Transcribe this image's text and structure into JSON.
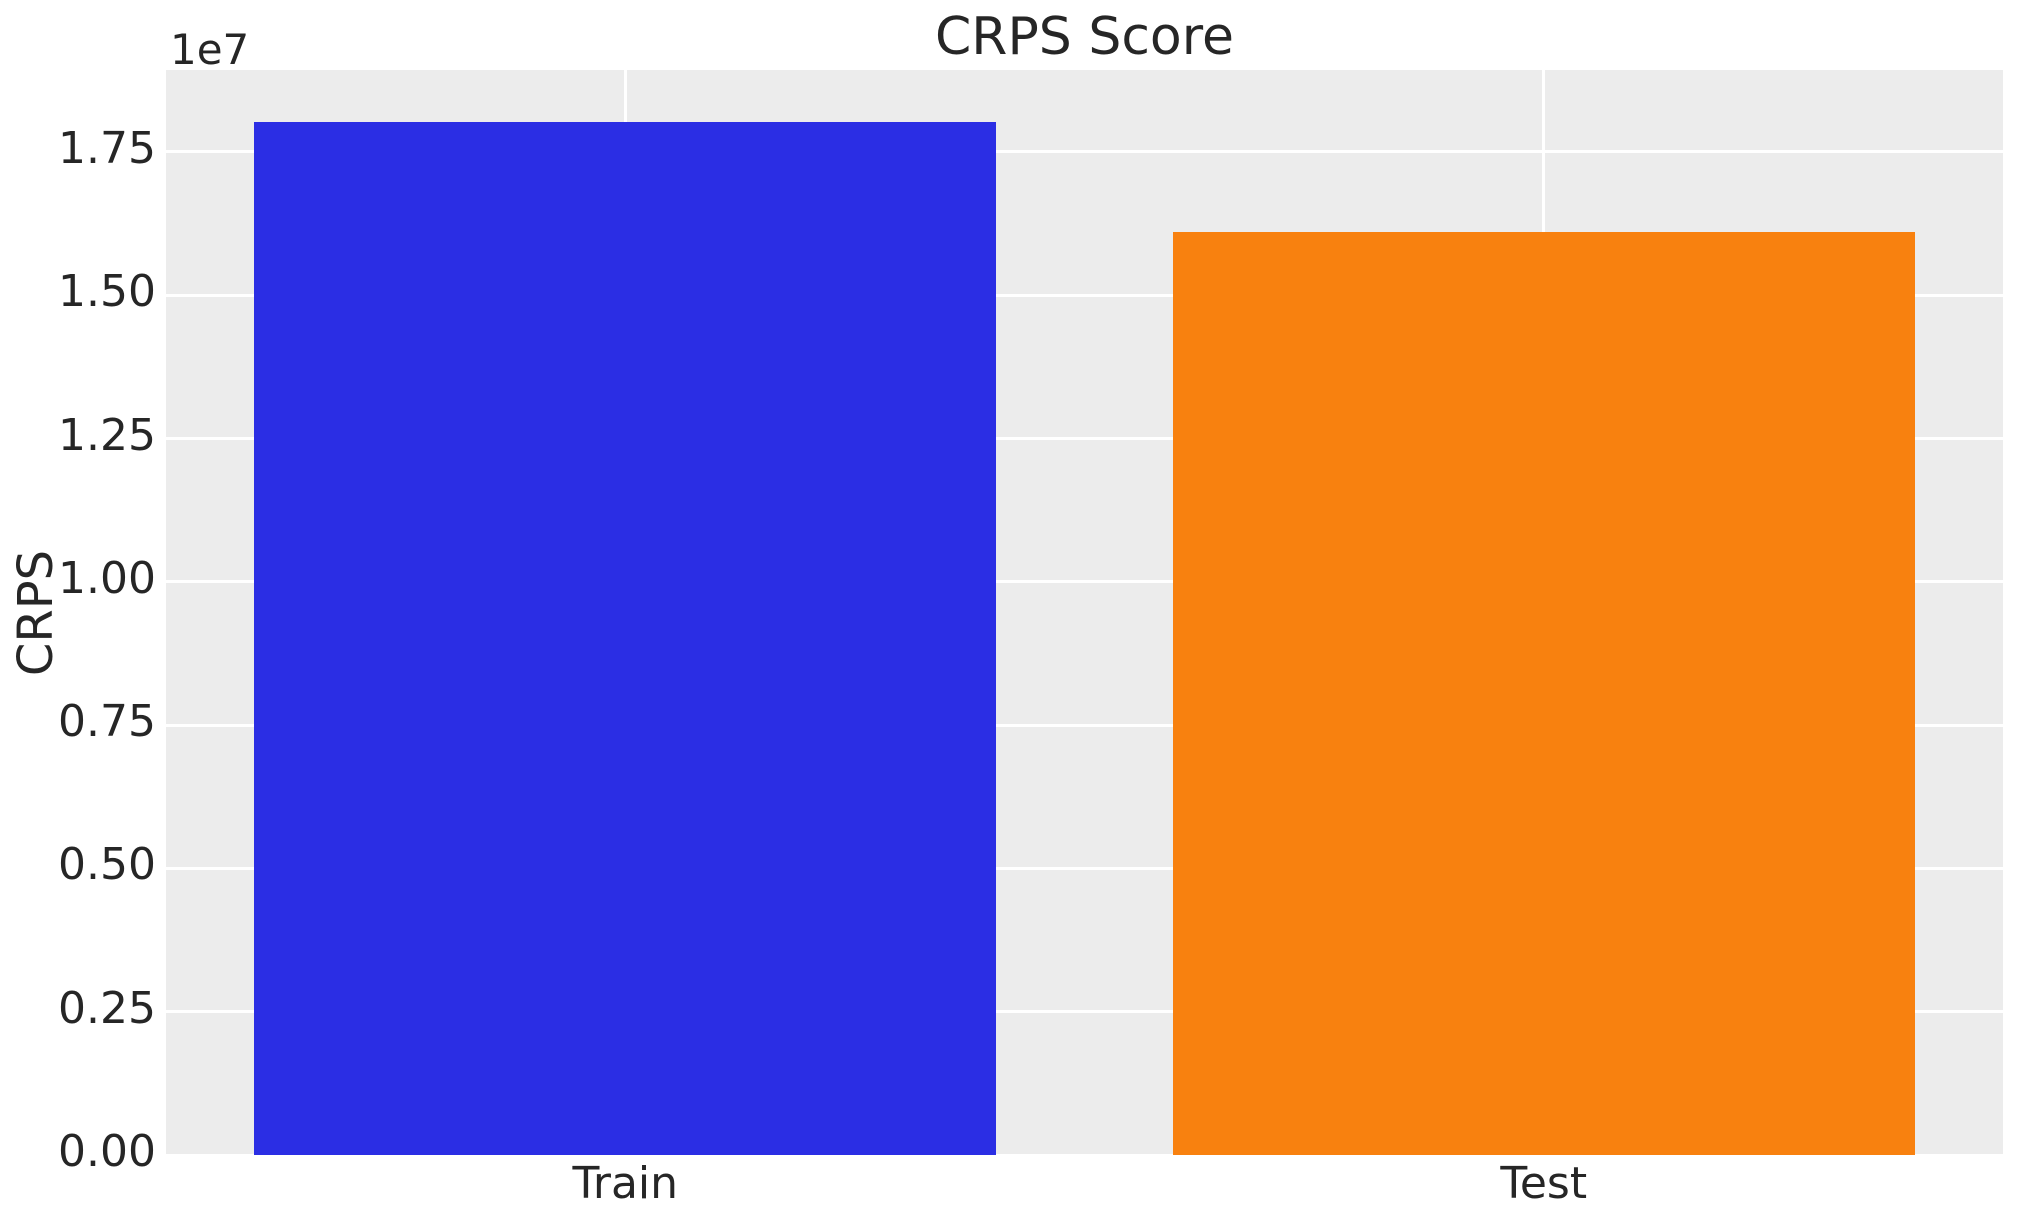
{
  "style": {
    "figure_background": "#ffffff",
    "plot_background": "#ececec",
    "grid_color": "#ffffff",
    "text_color": "#262626"
  },
  "chart_data": {
    "type": "bar",
    "title": "CRPS Score",
    "xlabel": "",
    "ylabel": "CRPS",
    "y_offset_label": "1e7",
    "categories": [
      "Train",
      "Test"
    ],
    "values": [
      18020000,
      16100000
    ],
    "bar_colors": [
      "#2b2ee4",
      "#f8810f"
    ],
    "ylim": [
      0,
      18930000
    ],
    "yticks": [
      0,
      2500000,
      5000000,
      7500000,
      10000000,
      12500000,
      15000000,
      17500000
    ],
    "ytick_labels": [
      "0.00",
      "0.25",
      "0.50",
      "0.75",
      "1.00",
      "1.25",
      "1.50",
      "1.75"
    ],
    "bar_width_frac": 0.808,
    "grid": true,
    "legend": null
  }
}
